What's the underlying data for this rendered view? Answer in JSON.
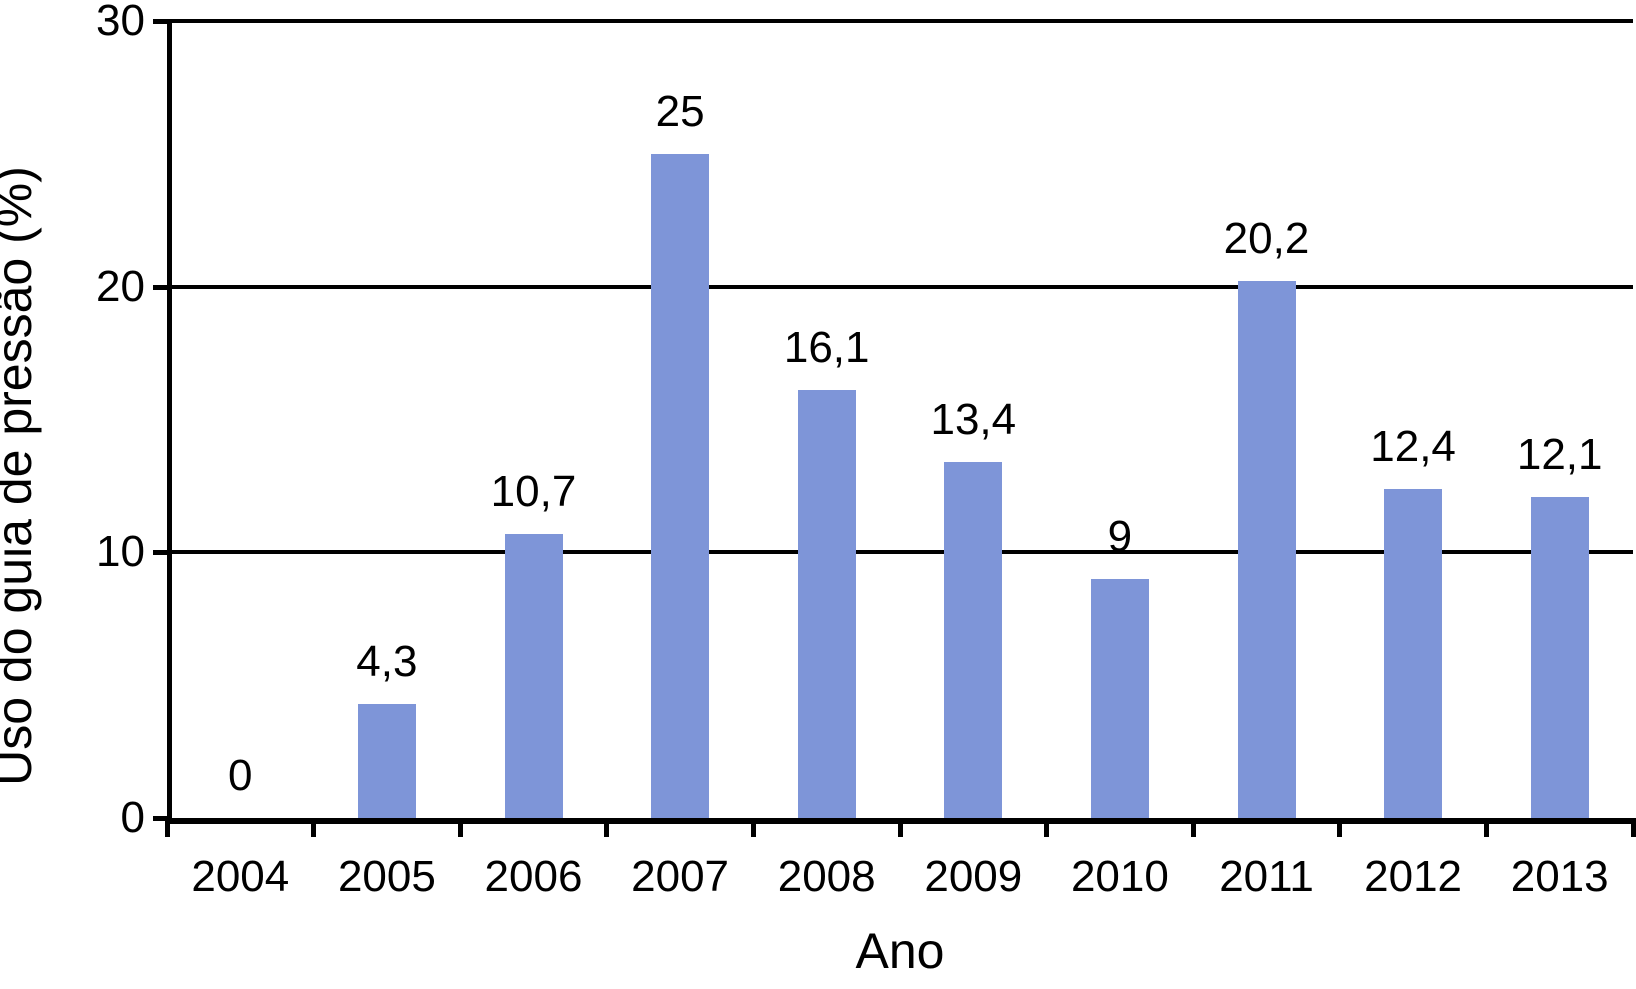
{
  "chart_data": {
    "type": "bar",
    "title": "",
    "xlabel": "Ano",
    "ylabel": "Uso do guia de pressão (%)",
    "categories": [
      "2004",
      "2005",
      "2006",
      "2007",
      "2008",
      "2009",
      "2010",
      "2011",
      "2012",
      "2013"
    ],
    "values": [
      0,
      4.3,
      10.7,
      25,
      16.1,
      13.4,
      9,
      20.2,
      12.4,
      12.1
    ],
    "value_labels": [
      "0",
      "4,3",
      "10,7",
      "25",
      "16,1",
      "13,4",
      "9",
      "20,2",
      "12,4",
      "12,1"
    ],
    "ylim": [
      0,
      30
    ],
    "yticks": [
      0,
      10,
      20,
      30
    ],
    "ytick_labels": [
      "0",
      "10",
      "20",
      "30"
    ],
    "grid": true,
    "legend": "none",
    "bar_color": "#7E95D8",
    "axis_color": "#000000",
    "background_color": "#FFFFFF"
  }
}
